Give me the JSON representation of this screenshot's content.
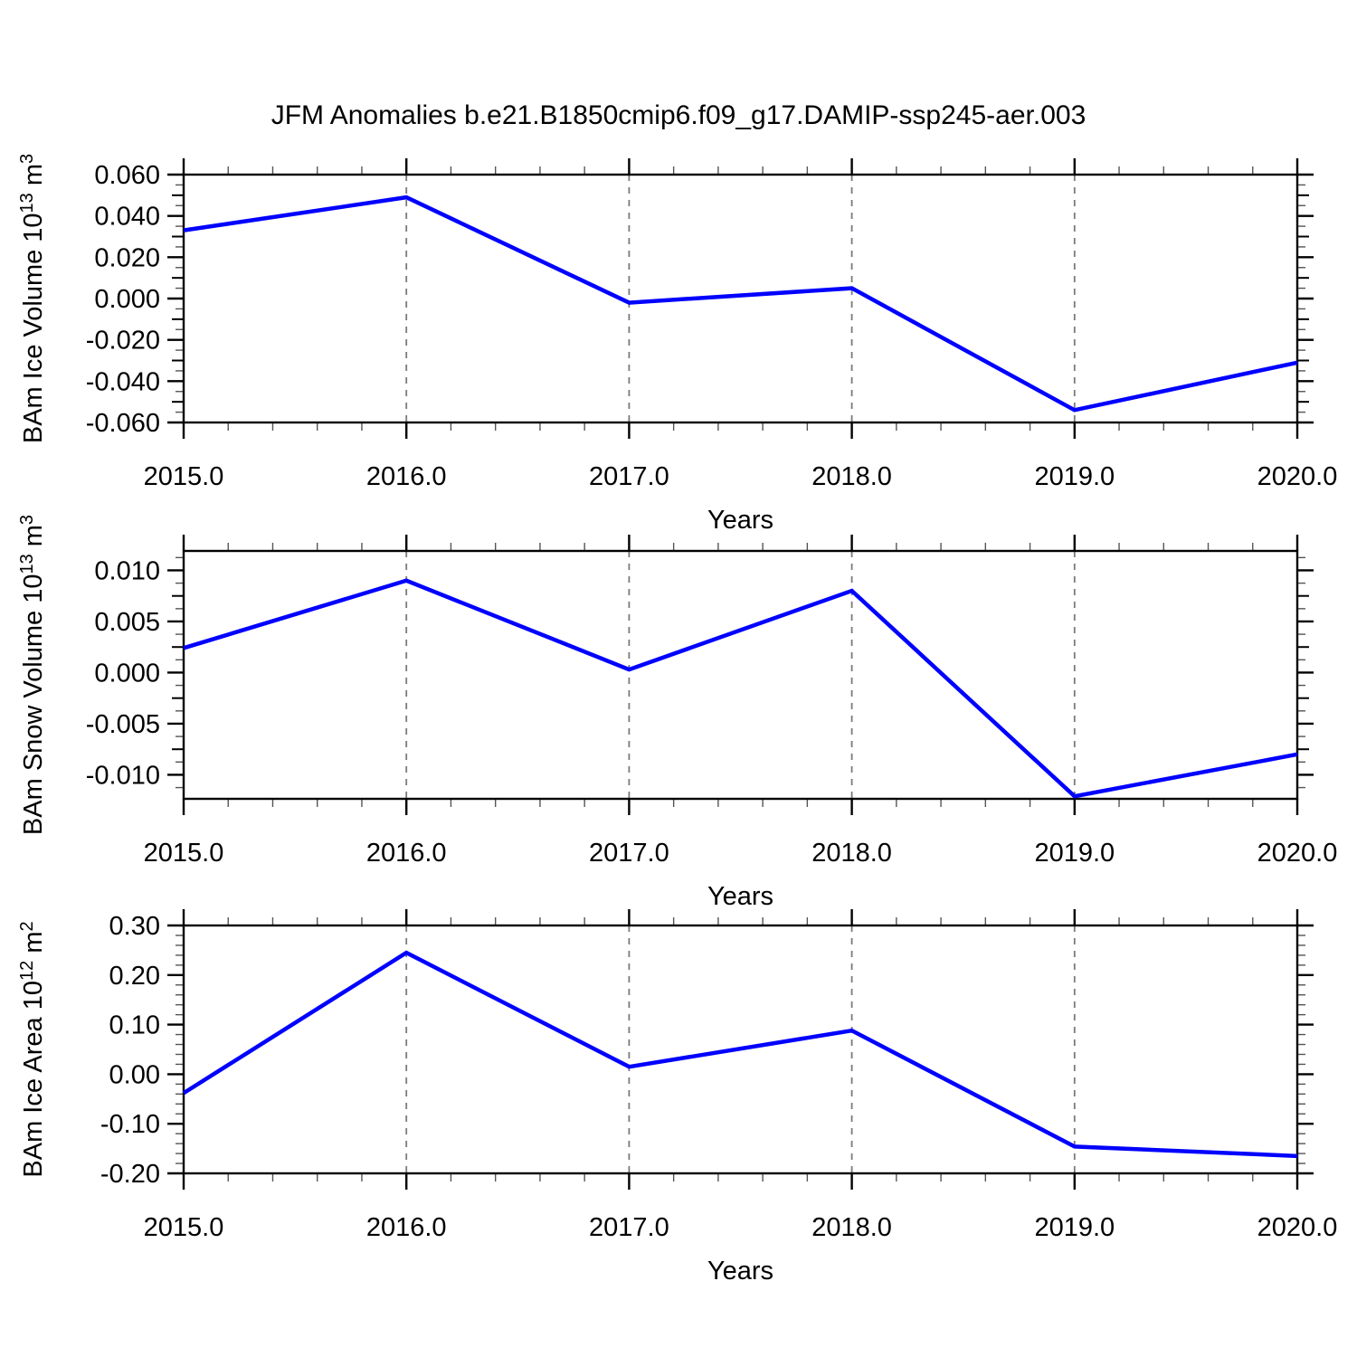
{
  "title": "JFM Anomalies b.e21.B1850cmip6.f09_g17.DAMIP-ssp245-aer.003",
  "colors": {
    "line": "#0000ff",
    "frame": "#000000",
    "grid": "#7a7a7a",
    "tick_minor": "#555555",
    "text": "#000000",
    "background": "#ffffff"
  },
  "chart_data": [
    {
      "type": "line",
      "name": "ice-volume",
      "xlabel": "Years",
      "ylabel": "BAm Ice Volume 10^13 m^3",
      "ylabel_parts": [
        {
          "t": "BAm Ice Volume 10"
        },
        {
          "t": "13",
          "sup": true
        },
        {
          "t": " m"
        },
        {
          "t": "3",
          "sup": true
        }
      ],
      "x": [
        2015.0,
        2016.0,
        2017.0,
        2018.0,
        2019.0,
        2020.0
      ],
      "values": [
        0.033,
        0.049,
        -0.002,
        0.005,
        -0.054,
        -0.031
      ],
      "xlim": [
        2015.0,
        2020.0
      ],
      "ylim": [
        -0.06,
        0.06
      ],
      "xticks": {
        "major": 1.0,
        "minor": 0.2
      },
      "yticks": {
        "major": 0.02,
        "semi": 0.01,
        "minor": 0.005
      },
      "xtick_labels": [
        {
          "v": 2015.0,
          "t": "2015.0"
        },
        {
          "v": 2016.0,
          "t": "2016.0"
        },
        {
          "v": 2017.0,
          "t": "2017.0"
        },
        {
          "v": 2018.0,
          "t": "2018.0"
        },
        {
          "v": 2019.0,
          "t": "2019.0"
        },
        {
          "v": 2020.0,
          "t": "2020.0"
        }
      ],
      "ytick_labels": [
        {
          "v": 0.06,
          "t": "0.060"
        },
        {
          "v": 0.04,
          "t": "0.040"
        },
        {
          "v": 0.02,
          "t": "0.020"
        },
        {
          "v": 0.0,
          "t": "0.000"
        },
        {
          "v": -0.02,
          "t": "-0.020"
        },
        {
          "v": -0.04,
          "t": "-0.040"
        },
        {
          "v": -0.06,
          "t": "-0.060"
        }
      ],
      "gridlines_x": [
        2016.0,
        2017.0,
        2018.0,
        2019.0
      ],
      "grid": true,
      "legend": "none"
    },
    {
      "type": "line",
      "name": "snow-volume",
      "xlabel": "Years",
      "ylabel": "BAm Snow Volume 10^13 m^3",
      "ylabel_parts": [
        {
          "t": "BAm Snow Volume 10"
        },
        {
          "t": "13",
          "sup": true
        },
        {
          "t": " m"
        },
        {
          "t": "3",
          "sup": true
        }
      ],
      "x": [
        2015.0,
        2016.0,
        2017.0,
        2018.0,
        2019.0,
        2020.0
      ],
      "values": [
        0.0024,
        0.009,
        0.0003,
        0.008,
        -0.0121,
        -0.008
      ],
      "xlim": [
        2015.0,
        2020.0
      ],
      "ylim": [
        -0.01235,
        0.0119
      ],
      "xticks": {
        "major": 1.0,
        "minor": 0.2
      },
      "yticks": {
        "major": 0.005,
        "semi": 0.0025,
        "minor": 0.00125
      },
      "xtick_labels": [
        {
          "v": 2015.0,
          "t": "2015.0"
        },
        {
          "v": 2016.0,
          "t": "2016.0"
        },
        {
          "v": 2017.0,
          "t": "2017.0"
        },
        {
          "v": 2018.0,
          "t": "2018.0"
        },
        {
          "v": 2019.0,
          "t": "2019.0"
        },
        {
          "v": 2020.0,
          "t": "2020.0"
        }
      ],
      "ytick_labels": [
        {
          "v": 0.01,
          "t": "0.010"
        },
        {
          "v": 0.005,
          "t": "0.005"
        },
        {
          "v": 0.0,
          "t": "0.000"
        },
        {
          "v": -0.005,
          "t": "-0.005"
        },
        {
          "v": -0.01,
          "t": "-0.010"
        }
      ],
      "gridlines_x": [
        2016.0,
        2017.0,
        2018.0,
        2019.0
      ],
      "grid": true,
      "legend": "none"
    },
    {
      "type": "line",
      "name": "ice-area",
      "xlabel": "Years",
      "ylabel": "BAm Ice Area 10^12 m^2",
      "ylabel_parts": [
        {
          "t": "BAm Ice Area 10"
        },
        {
          "t": "12",
          "sup": true
        },
        {
          "t": " m"
        },
        {
          "t": "2",
          "sup": true
        }
      ],
      "x": [
        2015.0,
        2016.0,
        2017.0,
        2018.0,
        2019.0,
        2020.0
      ],
      "values": [
        -0.038,
        0.245,
        0.015,
        0.088,
        -0.146,
        -0.165
      ],
      "xlim": [
        2015.0,
        2020.0
      ],
      "ylim": [
        -0.2,
        0.3
      ],
      "xticks": {
        "major": 1.0,
        "minor": 0.2
      },
      "yticks": {
        "major": 0.1,
        "semi": null,
        "minor": 0.02
      },
      "xtick_labels": [
        {
          "v": 2015.0,
          "t": "2015.0"
        },
        {
          "v": 2016.0,
          "t": "2016.0"
        },
        {
          "v": 2017.0,
          "t": "2017.0"
        },
        {
          "v": 2018.0,
          "t": "2018.0"
        },
        {
          "v": 2019.0,
          "t": "2019.0"
        },
        {
          "v": 2020.0,
          "t": "2020.0"
        }
      ],
      "ytick_labels": [
        {
          "v": 0.3,
          "t": "0.30"
        },
        {
          "v": 0.2,
          "t": "0.20"
        },
        {
          "v": 0.1,
          "t": "0.10"
        },
        {
          "v": 0.0,
          "t": "0.00"
        },
        {
          "v": -0.1,
          "t": "-0.10"
        },
        {
          "v": -0.2,
          "t": "-0.20"
        }
      ],
      "gridlines_x": [
        2016.0,
        2017.0,
        2018.0,
        2019.0
      ],
      "grid": true,
      "legend": "none"
    }
  ]
}
